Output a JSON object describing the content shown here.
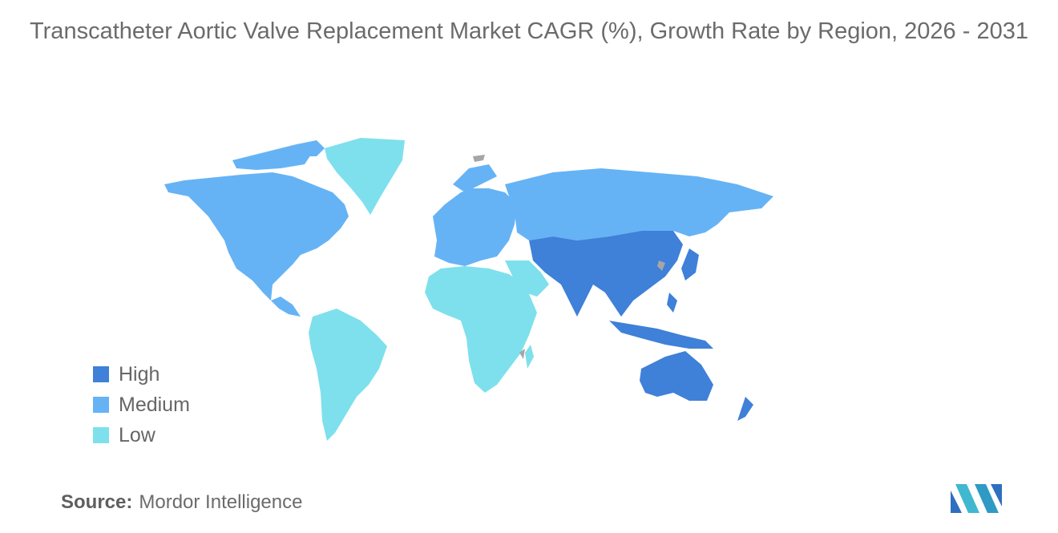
{
  "title": "Transcatheter Aortic Valve Replacement Market CAGR (%), Growth Rate by Region, 2026 - 2031",
  "legend": [
    {
      "label": "High",
      "color": "#3f80d8"
    },
    {
      "label": "Medium",
      "color": "#65b3f5"
    },
    {
      "label": "Low",
      "color": "#7ee0ec"
    }
  ],
  "no_data_color": "#a6a6a6",
  "regions": {
    "north_america": "Medium",
    "europe": "Medium",
    "russia": "Medium",
    "asia_pacific": "High",
    "australia_new_zealand": "High",
    "south_america": "Low",
    "africa": "Low",
    "middle_east": "Low",
    "greenland": "Low"
  },
  "source": {
    "label": "Source:",
    "value": "Mordor Intelligence"
  }
}
